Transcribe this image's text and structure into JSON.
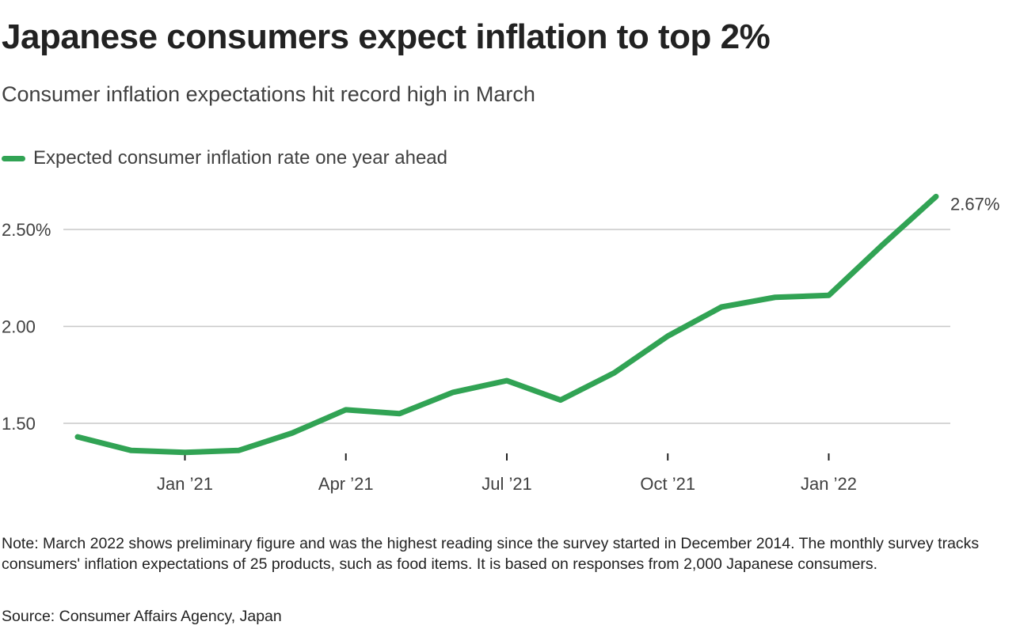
{
  "chart_data": {
    "type": "line",
    "title": "Japanese consumers expect inflation to top 2%",
    "subtitle": "Consumer inflation expectations hit record high in March",
    "series": [
      {
        "name": "Expected consumer inflation rate one year ahead",
        "color": "#31a354",
        "x": [
          "Nov 2020",
          "Dec 2020",
          "Jan 2021",
          "Feb 2021",
          "Mar 2021",
          "Apr 2021",
          "May 2021",
          "Jun 2021",
          "Jul 2021",
          "Aug 2021",
          "Sep 2021",
          "Oct 2021",
          "Nov 2021",
          "Dec 2021",
          "Jan 2022",
          "Feb 2022",
          "Mar 2022"
        ],
        "values": [
          1.43,
          1.36,
          1.35,
          1.36,
          1.45,
          1.57,
          1.55,
          1.66,
          1.72,
          1.62,
          1.76,
          1.95,
          2.1,
          2.15,
          2.16,
          2.42,
          2.67
        ]
      }
    ],
    "end_label": "2.67%",
    "y_ticks": [
      {
        "value": 2.5,
        "label": "2.50%"
      },
      {
        "value": 2.0,
        "label": "2.00"
      },
      {
        "value": 1.5,
        "label": "1.50"
      }
    ],
    "x_ticks": [
      {
        "index": 2,
        "label": "Jan ’21"
      },
      {
        "index": 5,
        "label": "Apr ’21"
      },
      {
        "index": 8,
        "label": "Jul ’21"
      },
      {
        "index": 11,
        "label": "Oct ’21"
      },
      {
        "index": 14,
        "label": "Jan ’22"
      }
    ],
    "ylim": [
      1.5,
      2.7
    ],
    "grid": true,
    "legend_position": "top-left",
    "xlabel": "",
    "ylabel": ""
  },
  "note": "Note: March 2022 shows preliminary figure and was the highest reading since the survey started in December 2014. The monthly survey tracks consumers' inflation expectations of 25 products, such as food items. It is based on responses from 2,000 Japanese consumers.",
  "source": "Source: Consumer Affairs Agency, Japan"
}
